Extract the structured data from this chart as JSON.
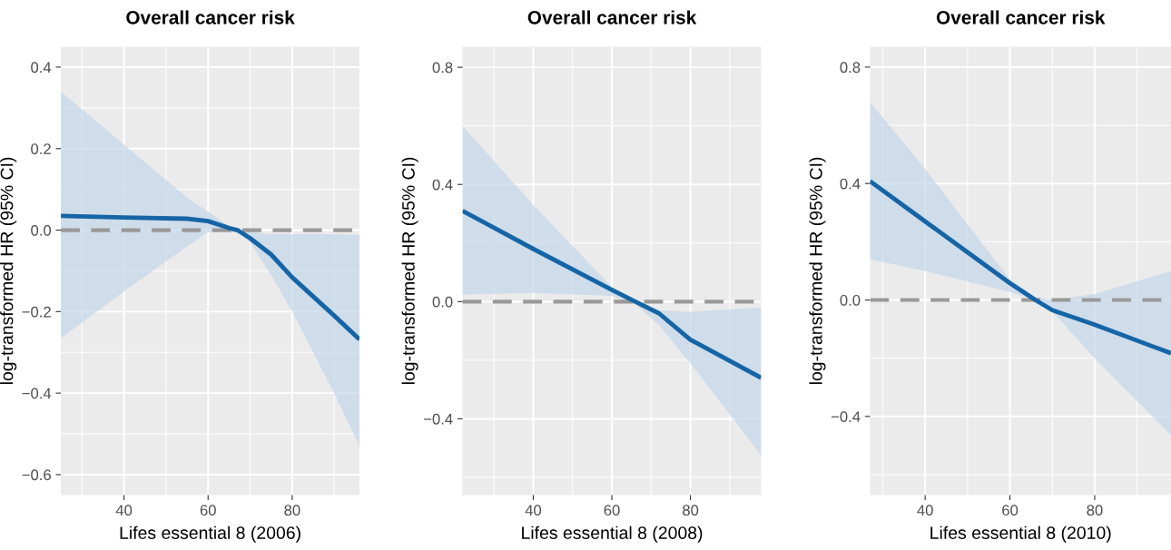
{
  "chart_data": [
    {
      "type": "line",
      "title": "Overall cancer risk",
      "xlabel": "Lifes essential 8 (2006)",
      "ylabel": "log-transformed HR (95% CI)",
      "xlim": [
        25,
        96
      ],
      "ylim": [
        -0.65,
        0.45
      ],
      "xticks": [
        40,
        60,
        80
      ],
      "yticks": [
        {
          "value": -0.6,
          "label": "−0.6"
        },
        {
          "value": -0.4,
          "label": "−0.4"
        },
        {
          "value": -0.2,
          "label": "−0.2"
        },
        {
          "value": 0,
          "label": "0.0"
        },
        {
          "value": 0.2,
          "label": "0.2"
        },
        {
          "value": 0.4,
          "label": "0.4"
        }
      ],
      "grid": true,
      "line_style": "solid",
      "marker": "none",
      "ref_lines": [
        {
          "axis": "y",
          "value": 0,
          "color": "#999999",
          "line_style": "dashed"
        }
      ],
      "series": [
        {
          "color": "#1565a6",
          "x": [
            25,
            40,
            55,
            60,
            65,
            67,
            70,
            75,
            80,
            90,
            96
          ],
          "values": [
            0.035,
            0.031,
            0.028,
            0.022,
            0.005,
            0.0,
            -0.02,
            -0.06,
            -0.116,
            -0.21,
            -0.268
          ],
          "upper": [
            0.34,
            0.21,
            0.08,
            0.045,
            0.01,
            0.0,
            -0.005,
            -0.01,
            -0.01,
            -0.01,
            -0.012
          ],
          "lower": [
            -0.265,
            -0.15,
            -0.04,
            -0.005,
            0.0,
            -0.005,
            -0.03,
            -0.11,
            -0.2,
            -0.4,
            -0.53
          ]
        }
      ]
    },
    {
      "type": "line",
      "title": "Overall cancer risk",
      "xlabel": "Lifes essential 8 (2008)",
      "ylabel": "log-transformed HR (95% CI)",
      "xlim": [
        22,
        98
      ],
      "ylim": [
        -0.66,
        0.87
      ],
      "xticks": [
        40,
        60,
        80
      ],
      "yticks": [
        {
          "value": -0.4,
          "label": "−0.4"
        },
        {
          "value": 0,
          "label": "0.0"
        },
        {
          "value": 0.4,
          "label": "0.4"
        },
        {
          "value": 0.8,
          "label": "0.8"
        }
      ],
      "grid": true,
      "line_style": "solid",
      "marker": "none",
      "ref_lines": [
        {
          "axis": "y",
          "value": 0,
          "color": "#999999",
          "line_style": "dashed"
        }
      ],
      "series": [
        {
          "color": "#1565a6",
          "x": [
            22,
            40,
            60,
            66,
            72,
            80,
            98
          ],
          "values": [
            0.31,
            0.18,
            0.04,
            0.0,
            -0.04,
            -0.13,
            -0.26
          ],
          "upper": [
            0.6,
            0.33,
            0.05,
            0.0,
            -0.03,
            -0.035,
            -0.02
          ],
          "lower": [
            0.024,
            0.03,
            0.02,
            -0.01,
            -0.08,
            -0.21,
            -0.525
          ]
        }
      ]
    },
    {
      "type": "line",
      "title": "Overall cancer risk",
      "xlabel": "Lifes essential 8 (2010)",
      "ylabel": "log-transformed HR (95% CI)",
      "xlim": [
        27,
        98
      ],
      "ylim": [
        -0.67,
        0.87
      ],
      "xticks": [
        40,
        60,
        80
      ],
      "yticks": [
        {
          "value": -0.4,
          "label": "−0.4"
        },
        {
          "value": 0,
          "label": "0.0"
        },
        {
          "value": 0.4,
          "label": "0.4"
        },
        {
          "value": 0.8,
          "label": "0.8"
        }
      ],
      "grid": true,
      "line_style": "solid",
      "marker": "none",
      "ref_lines": [
        {
          "axis": "y",
          "value": 0,
          "color": "#999999",
          "line_style": "dashed"
        }
      ],
      "series": [
        {
          "color": "#1565a6",
          "x": [
            27,
            40,
            60,
            66,
            70,
            80,
            98
          ],
          "values": [
            0.408,
            0.27,
            0.058,
            0.0,
            -0.035,
            -0.085,
            -0.183
          ],
          "upper": [
            0.68,
            0.45,
            0.07,
            0.01,
            0.0,
            0.02,
            0.1
          ],
          "lower": [
            0.14,
            0.1,
            0.027,
            0.0,
            -0.04,
            -0.2,
            -0.464
          ]
        }
      ]
    }
  ]
}
